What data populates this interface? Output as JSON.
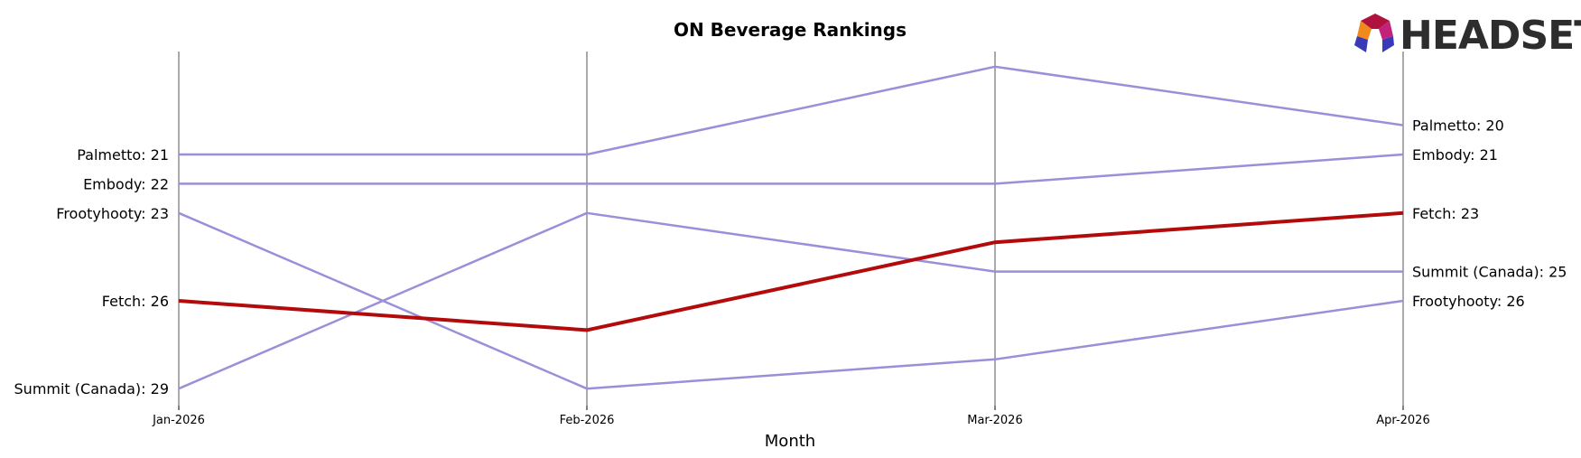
{
  "chart_data": {
    "type": "line",
    "title": "ON Beverage Rankings",
    "xlabel": "Month",
    "ylabel": "",
    "x": [
      "Jan-2026",
      "Feb-2026",
      "Mar-2026",
      "Apr-2026"
    ],
    "y_inverted": true,
    "ylim": [
      17.5,
      29
    ],
    "grid": "vertical lines at each month",
    "series": [
      {
        "name": "Palmetto",
        "values": [
          21,
          21,
          18,
          20
        ],
        "color": "#9a8fd8",
        "highlight": false
      },
      {
        "name": "Embody",
        "values": [
          22,
          22,
          22,
          21
        ],
        "color": "#9a8fd8",
        "highlight": false
      },
      {
        "name": "Frootyhooty",
        "values": [
          23,
          29,
          28,
          26
        ],
        "color": "#9a8fd8",
        "highlight": false
      },
      {
        "name": "Fetch",
        "values": [
          26,
          27,
          24,
          23
        ],
        "color": "#b30b0b",
        "highlight": true
      },
      {
        "name": "Summit (Canada)",
        "values": [
          29,
          23,
          25,
          25
        ],
        "color": "#9a8fd8",
        "highlight": false
      }
    ],
    "left_labels": [
      {
        "text": "Palmetto: 21",
        "series": "Palmetto"
      },
      {
        "text": "Embody: 22",
        "series": "Embody"
      },
      {
        "text": "Frootyhooty: 23",
        "series": "Frootyhooty"
      },
      {
        "text": "Fetch: 26",
        "series": "Fetch"
      },
      {
        "text": "Summit (Canada): 29",
        "series": "Summit (Canada)"
      }
    ],
    "right_labels": [
      {
        "text": "Palmetto: 20",
        "series": "Palmetto"
      },
      {
        "text": "Embody: 21",
        "series": "Embody"
      },
      {
        "text": "Fetch: 23",
        "series": "Fetch"
      },
      {
        "text": "Summit (Canada): 25",
        "series": "Summit (Canada)"
      },
      {
        "text": "Frootyhooty: 26",
        "series": "Frootyhooty"
      }
    ]
  },
  "logo": {
    "text": "HEADSET"
  },
  "colors": {
    "grid": "#aaaaaa",
    "muted": "#9a8fd8",
    "highlight": "#b30b0b"
  }
}
